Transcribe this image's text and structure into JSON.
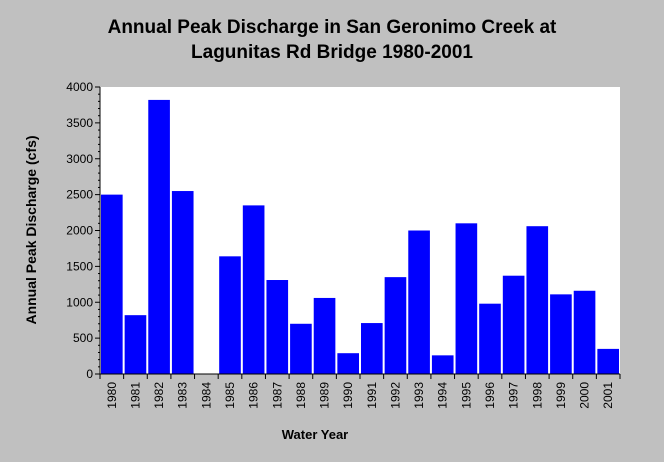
{
  "chart_data": {
    "type": "bar",
    "title_line1": "Annual Peak Discharge in San Geronimo Creek at",
    "title_line2": "Lagunitas Rd Bridge 1980-2001",
    "xlabel": "Water Year",
    "ylabel": "Annual Peak Discharge (cfs)",
    "ylim": [
      0,
      4000
    ],
    "yticks": [
      "0",
      "500",
      "1000",
      "1500",
      "2000",
      "2500",
      "3000",
      "3500",
      "4000"
    ],
    "categories": [
      "1980",
      "1981",
      "1982",
      "1983",
      "1984",
      "1985",
      "1986",
      "1987",
      "1988",
      "1989",
      "1990",
      "1991",
      "1992",
      "1993",
      "1994",
      "1995",
      "1996",
      "1997",
      "1998",
      "1999",
      "2000",
      "2001"
    ],
    "values": [
      2500,
      820,
      3820,
      2550,
      0,
      1640,
      2350,
      1310,
      700,
      1060,
      290,
      710,
      1350,
      2000,
      260,
      2100,
      980,
      1370,
      2060,
      1110,
      1160,
      350
    ],
    "grid": false,
    "bar_color": "#0000ff",
    "background_color": "#c0c0c0",
    "plot_background_color": "#ffffff"
  }
}
